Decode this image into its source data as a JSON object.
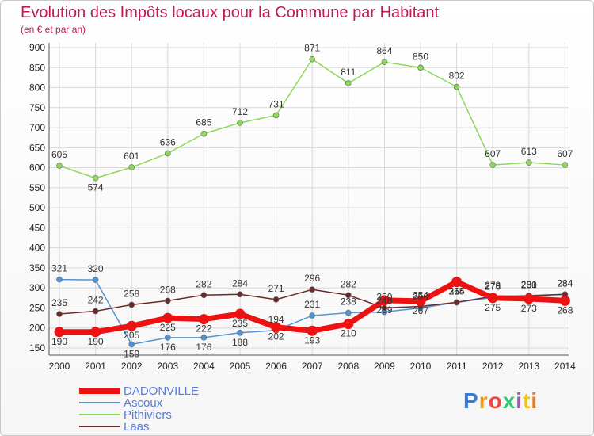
{
  "title": "Evolution des Impôts locaux pour la Commune par Habitant",
  "subtitle": "(en € et par an)",
  "logo_text": "Proxiti",
  "colors": {
    "DADONVILLE": "#ee1111",
    "Ascoux": "#4f95d6",
    "Pithiviers": "#8ed85a",
    "Laas": "#6b2a2a",
    "grid": "#d8d8d8",
    "axis": "#555555",
    "title": "#c2185b",
    "legend_text": "#5b7bd8"
  },
  "chart_data": {
    "type": "line",
    "title": "Evolution des Impôts locaux pour la Commune par Habitant",
    "subtitle": "(en € et par an)",
    "xlabel": "",
    "ylabel": "",
    "x": [
      "2000",
      "2001",
      "2002",
      "2003",
      "2004",
      "2005",
      "2006",
      "2007",
      "2008",
      "2009",
      "2010",
      "2011",
      "2012",
      "2013",
      "2014"
    ],
    "y_ticks": [
      150,
      200,
      250,
      300,
      350,
      400,
      450,
      500,
      550,
      600,
      650,
      700,
      750,
      800,
      850,
      900
    ],
    "ylim": [
      140,
      910
    ],
    "grid": true,
    "legend_position": "bottom-left",
    "series": [
      {
        "name": "DADONVILLE",
        "values": [
          190,
          190,
          205,
          225,
          222,
          235,
          202,
          193,
          210,
          269,
          267,
          315,
          275,
          273,
          268
        ]
      },
      {
        "name": "Ascoux",
        "values": [
          321,
          320,
          159,
          176,
          176,
          188,
          194,
          231,
          238,
          240,
          250,
          264,
          276,
          281,
          284
        ]
      },
      {
        "name": "Pithiviers",
        "values": [
          605,
          574,
          601,
          636,
          685,
          712,
          731,
          871,
          811,
          864,
          850,
          802,
          607,
          613,
          607
        ]
      },
      {
        "name": "Laas",
        "values": [
          235,
          242,
          258,
          268,
          282,
          284,
          271,
          296,
          282,
          250,
          254,
          264,
          279,
          280,
          284
        ]
      }
    ]
  }
}
